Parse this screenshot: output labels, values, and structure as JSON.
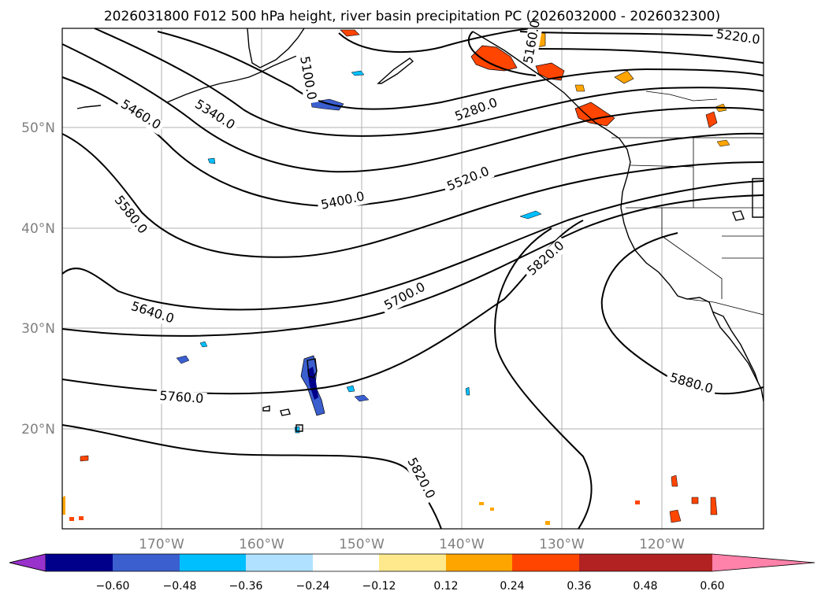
{
  "title": "2026031800 F012 500 hPa height, river basin precipitation PC (2026032000 - 2026032300)",
  "lat_labels": [
    "50°N",
    "40°N",
    "30°N",
    "20°N"
  ],
  "lon_labels": [
    "170°W",
    "160°W",
    "150°W",
    "140°W",
    "130°W",
    "120°W"
  ],
  "contour_labels": [
    {
      "id": "c5220",
      "text": "5220.0"
    },
    {
      "id": "c5100",
      "text": "5100.0"
    },
    {
      "id": "c5280",
      "text": "5280.0"
    },
    {
      "id": "c5340",
      "text": "5340.0"
    },
    {
      "id": "c5460",
      "text": "5460.0"
    },
    {
      "id": "c5400",
      "text": "5400.0"
    },
    {
      "id": "c5520",
      "text": "5520.0"
    },
    {
      "id": "c5580",
      "text": "5580.0"
    },
    {
      "id": "c5640",
      "text": "5640.0"
    },
    {
      "id": "c5700",
      "text": "5700.0"
    },
    {
      "id": "c5820a",
      "text": "5820.0"
    },
    {
      "id": "c5760",
      "text": "5760.0"
    },
    {
      "id": "c5880",
      "text": "5880.0"
    },
    {
      "id": "c5820b",
      "text": "5820.0"
    },
    {
      "id": "c5160",
      "text": "5160.0"
    }
  ],
  "colorbar": {
    "ticks": [
      "−0.60",
      "−0.48",
      "−0.36",
      "−0.24",
      "−0.12",
      "0.12",
      "0.24",
      "0.36",
      "0.48",
      "0.60"
    ],
    "colors": [
      "#9932cc",
      "#00008b",
      "#3b5fcf",
      "#00bfff",
      "#b0e2ff",
      "#ffffff",
      "#ffe98c",
      "#ffa500",
      "#ff4500",
      "#b22222",
      "#ff82ab"
    ]
  }
}
